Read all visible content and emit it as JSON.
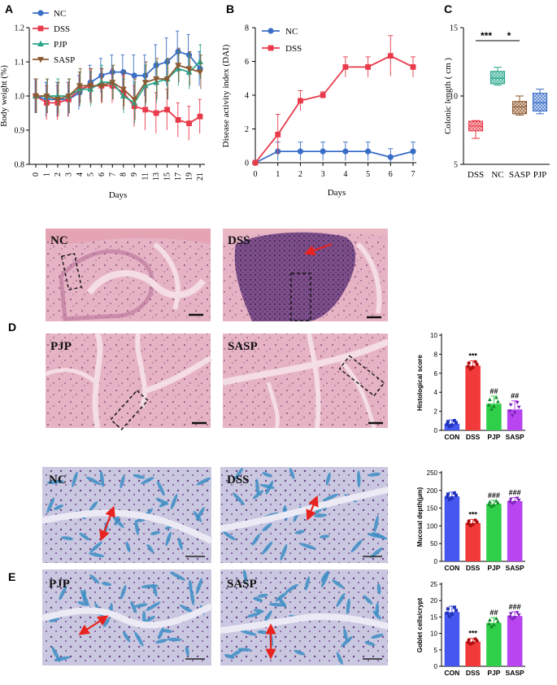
{
  "panels": {
    "A": "A",
    "B": "B",
    "C": "C",
    "D": "D",
    "E": "E"
  },
  "colors": {
    "NC": "#3a6ec6",
    "DSS": "#e83a4a",
    "PJP": "#2aa58a",
    "SASP": "#8c5a32",
    "CON_bar": "#4657f0",
    "DSS_bar": "#f23a3a",
    "PJP_bar": "#2fcf4a",
    "SASP_bar": "#b845f0",
    "he_bg": "#e7b8c6",
    "he_tissue": "#c48aa8",
    "ab_bg": "#d2cfe6",
    "ab_tissue": "#7aa5cf",
    "arrow": "#e8231f"
  },
  "he_images": [
    {
      "label": "NC",
      "tone": "normal"
    },
    {
      "label": "DSS",
      "tone": "inflamed"
    },
    {
      "label": "PJP",
      "tone": "normal"
    },
    {
      "label": "SASP",
      "tone": "normal"
    }
  ],
  "ab_images": [
    {
      "label": "NC"
    },
    {
      "label": "DSS"
    },
    {
      "label": "PJP"
    },
    {
      "label": "SASP"
    }
  ],
  "chart_data": [
    {
      "id": "A",
      "type": "line",
      "title": "",
      "xlabel": "Days",
      "ylabel": "Body weight (%)",
      "categories": [
        "0",
        "1",
        "2",
        "3",
        "4",
        "5",
        "6",
        "7",
        "8",
        "9",
        "11",
        "13",
        "15",
        "17",
        "19",
        "21"
      ],
      "ylim": [
        0.8,
        1.2
      ],
      "yticks": [
        "0.8",
        "0.9",
        "1.0",
        "1.1",
        "1.2"
      ],
      "legend": [
        "NC",
        "DSS",
        "PJP",
        "SASP"
      ],
      "series": [
        {
          "name": "NC",
          "values": [
            1.0,
            0.99,
            0.99,
            0.99,
            1.01,
            1.04,
            1.06,
            1.07,
            1.07,
            1.06,
            1.06,
            1.09,
            1.1,
            1.13,
            1.12,
            1.08
          ]
        },
        {
          "name": "DSS",
          "values": [
            1.0,
            0.98,
            0.98,
            0.99,
            1.02,
            1.03,
            1.03,
            1.03,
            1.01,
            0.97,
            0.96,
            0.95,
            0.96,
            0.93,
            0.92,
            0.94
          ]
        },
        {
          "name": "PJP",
          "values": [
            1.0,
            1.0,
            1.0,
            1.0,
            1.02,
            1.02,
            1.04,
            1.04,
            1.0,
            0.98,
            1.03,
            1.04,
            1.05,
            1.08,
            1.07,
            1.1
          ]
        },
        {
          "name": "SASP",
          "values": [
            1.0,
            1.0,
            0.99,
            1.0,
            1.03,
            1.03,
            1.03,
            1.04,
            1.02,
            0.99,
            1.04,
            1.05,
            1.05,
            1.09,
            1.08,
            1.07
          ]
        }
      ],
      "errors": [
        [
          0.05,
          0.05,
          0.05,
          0.05,
          0.05,
          0.05,
          0.05,
          0.05,
          0.05,
          0.06,
          0.06,
          0.06,
          0.07,
          0.06,
          0.06,
          0.05
        ],
        [
          0.05,
          0.05,
          0.05,
          0.05,
          0.05,
          0.05,
          0.05,
          0.05,
          0.05,
          0.06,
          0.06,
          0.06,
          0.06,
          0.05,
          0.05,
          0.05
        ],
        [
          0.05,
          0.05,
          0.05,
          0.05,
          0.05,
          0.05,
          0.05,
          0.05,
          0.05,
          0.06,
          0.06,
          0.06,
          0.06,
          0.05,
          0.05,
          0.05
        ],
        [
          0.05,
          0.05,
          0.05,
          0.05,
          0.05,
          0.05,
          0.05,
          0.05,
          0.05,
          0.06,
          0.06,
          0.06,
          0.06,
          0.05,
          0.05,
          0.05
        ]
      ]
    },
    {
      "id": "B",
      "type": "line",
      "title": "",
      "xlabel": "Days",
      "ylabel": "Disease activity index (DAI)",
      "x": [
        0,
        1,
        2,
        3,
        4,
        5,
        6,
        7
      ],
      "ylim": [
        0,
        8
      ],
      "yticks": [
        "0",
        "2",
        "4",
        "6",
        "8"
      ],
      "legend": [
        "NC",
        "DSS"
      ],
      "series": [
        {
          "name": "NC",
          "values": [
            0,
            0.67,
            0.67,
            0.67,
            0.67,
            0.67,
            0.33,
            0.67
          ],
          "errors": [
            0,
            0.55,
            0.55,
            0.55,
            0.55,
            0.55,
            0.5,
            0.55
          ]
        },
        {
          "name": "DSS",
          "values": [
            0,
            1.67,
            3.67,
            4.0,
            5.67,
            5.67,
            6.33,
            5.67
          ],
          "errors": [
            0,
            1.2,
            0.6,
            0.2,
            0.6,
            0.6,
            1.2,
            0.6
          ]
        }
      ]
    },
    {
      "id": "C",
      "type": "box",
      "ylabel": "Colonic length ( cm )",
      "categories": [
        "DSS",
        "NC",
        "SASP",
        "PJP"
      ],
      "ylim": [
        5,
        15
      ],
      "yticks": [
        "5",
        "10",
        "15"
      ],
      "boxes": [
        {
          "name": "DSS",
          "min": 6.9,
          "q1": 7.45,
          "median": 7.8,
          "q3": 8.15,
          "max": 8.2
        },
        {
          "name": "NC",
          "min": 10.8,
          "q1": 10.9,
          "median": 11.3,
          "q3": 11.8,
          "max": 12.1
        },
        {
          "name": "SASP",
          "min": 8.6,
          "q1": 8.7,
          "median": 9.2,
          "q3": 9.6,
          "max": 10.0
        },
        {
          "name": "PJP",
          "min": 8.7,
          "q1": 8.9,
          "median": 9.5,
          "q3": 10.2,
          "max": 10.5
        }
      ],
      "annotations": [
        "***",
        "*"
      ]
    },
    {
      "id": "D-histo",
      "type": "bar",
      "ylabel": "Histological score",
      "categories": [
        "CON",
        "DSS",
        "PJP",
        "SASP"
      ],
      "values": [
        0.7,
        6.8,
        2.8,
        2.2
      ],
      "errors": [
        0.4,
        0.5,
        0.8,
        0.9
      ],
      "ylim": [
        0,
        10
      ],
      "yticks": [
        "0",
        "2",
        "4",
        "6",
        "8",
        "10"
      ],
      "annotations": [
        "",
        "***",
        "##",
        "##"
      ]
    },
    {
      "id": "E-mucosal",
      "type": "bar",
      "ylabel": "Mucosal depth(μm)",
      "categories": [
        "CON",
        "DSS",
        "PJP",
        "SASP"
      ],
      "values": [
        183,
        108,
        162,
        170
      ],
      "errors": [
        12,
        10,
        10,
        10
      ],
      "ylim": [
        0,
        250
      ],
      "yticks": [
        "0",
        "50",
        "100",
        "150",
        "200",
        "250"
      ],
      "annotations": [
        "",
        "***",
        "###",
        "###"
      ]
    },
    {
      "id": "E-goblet",
      "type": "bar",
      "ylabel": "Goblet cells/crypt",
      "categories": [
        "CON",
        "DSS",
        "PJP",
        "SASP"
      ],
      "values": [
        16.5,
        7.5,
        13.2,
        15.3
      ],
      "errors": [
        1.8,
        1.0,
        1.6,
        1.3
      ],
      "ylim": [
        0,
        25
      ],
      "yticks": [
        "0",
        "5",
        "10",
        "15",
        "20",
        "25"
      ],
      "annotations": [
        "",
        "***",
        "##",
        "###"
      ]
    }
  ]
}
